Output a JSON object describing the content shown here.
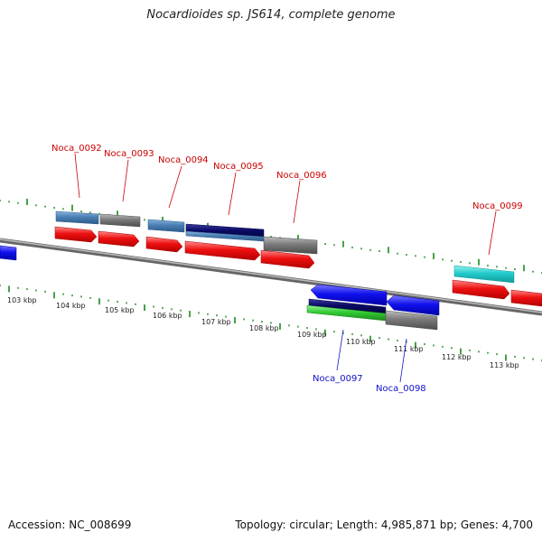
{
  "title": "Nocardioides sp. JS614, complete genome",
  "footer": {
    "accession": "Accession: NC_008699",
    "summary": "Topology: circular; Length: 4,985,871 bp; Genes: 4,700"
  },
  "colors": {
    "backbone": "#888888",
    "tick": "#1a8a1a",
    "forward_label": "#cc0000",
    "reverse_label": "#1010cc",
    "cds": "#ee1111",
    "gene_blue": "#4a7fb5",
    "gene_gray": "#6e6e6e",
    "gene_navy": "#0a0a66",
    "gene_cyan": "#22cccc",
    "reverse_gene": "#1111ee",
    "green": "#33cc33"
  },
  "kbp_labels": [
    "103 kbp",
    "104 kbp",
    "105 kbp",
    "106 kbp",
    "107 kbp",
    "108 kbp",
    "109 kbp",
    "110 kbp",
    "111 kbp",
    "112 kbp",
    "113 kbp"
  ],
  "forward_genes": [
    "Noca_0092",
    "Noca_0093",
    "Noca_0094",
    "Noca_0095",
    "Noca_0096",
    "Noca_0099"
  ],
  "reverse_genes": [
    "Noca_0097",
    "Noca_0098"
  ]
}
